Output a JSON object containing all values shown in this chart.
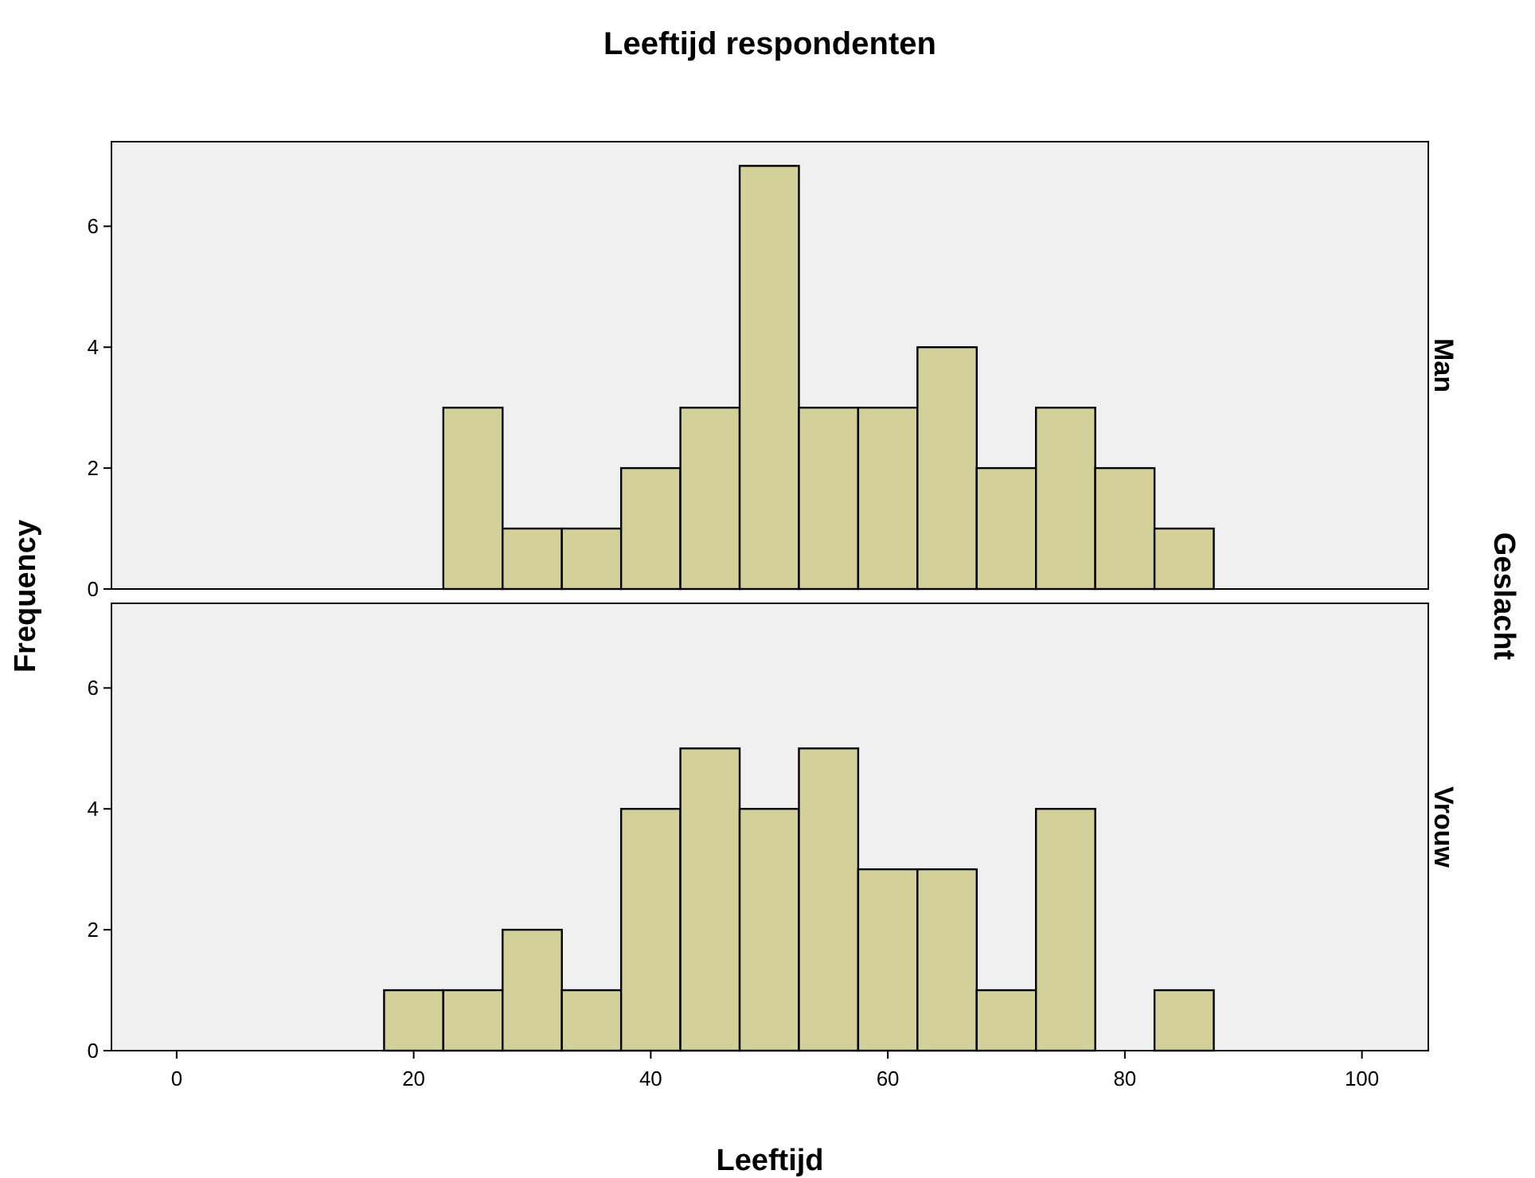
{
  "chart_data": [
    {
      "type": "histogram",
      "title": "Leeftijd respondenten",
      "ylabel": "Frequency",
      "y2label": "Man",
      "annotations": [
        "Geslacht"
      ],
      "bins": [
        22.5,
        27.5,
        32.5,
        37.5,
        42.5,
        47.5,
        52.5,
        57.5,
        62.5,
        67.5,
        72.5,
        77.5,
        82.5,
        87.5
      ],
      "values": [
        3,
        1,
        1,
        2,
        3,
        7,
        3,
        3,
        4,
        2,
        3,
        2,
        1
      ],
      "color": "#d4d09a",
      "xlim": [
        -5.5,
        105.6
      ],
      "ylim": [
        0,
        7.4
      ],
      "yticks": [
        0,
        2,
        4,
        6
      ],
      "tick_labels": "y"
    },
    {
      "type": "histogram",
      "xlabel": "Leeftijd",
      "y2label": "Vrouw",
      "bins": [
        17.5,
        22.5,
        27.5,
        32.5,
        37.5,
        42.5,
        47.5,
        52.5,
        57.5,
        62.5,
        67.5,
        72.5,
        77.5,
        82.5,
        87.5
      ],
      "values": [
        1,
        1,
        2,
        1,
        4,
        5,
        4,
        5,
        3,
        3,
        1,
        4,
        0,
        1
      ],
      "color": "#d4d09a",
      "xlim": [
        -5.5,
        105.6
      ],
      "xticks": [
        0,
        20,
        40,
        60,
        80,
        100
      ],
      "ylim": [
        0,
        7.4
      ],
      "yticks": [
        0,
        2,
        4,
        6
      ]
    }
  ]
}
